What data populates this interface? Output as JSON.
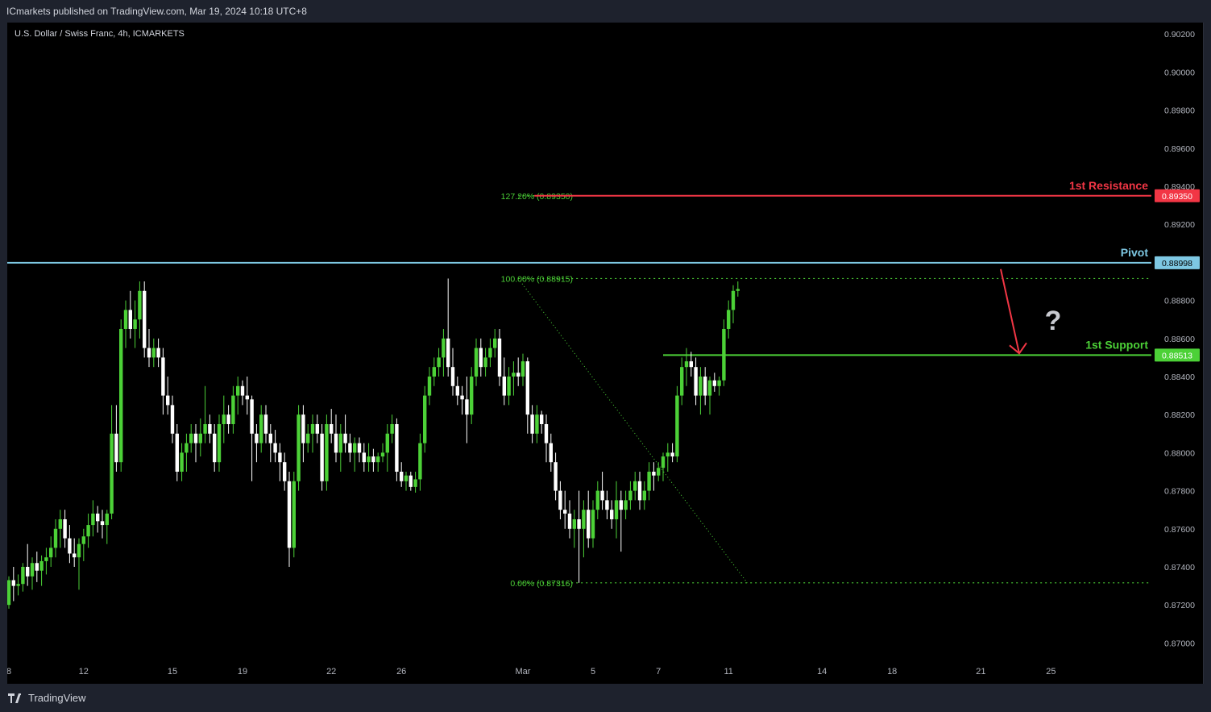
{
  "header": {
    "published_by": "ICmarkets published on TradingView.com, Mar 19, 2024 10:18 UTC+8"
  },
  "chart_title": "U.S. Dollar / Swiss Franc, 4h, ICMARKETS",
  "footer": {
    "brand": "TradingView"
  },
  "colors": {
    "background": "#000000",
    "bull": "#4cd137",
    "bear": "#ffffff",
    "resistance": "#f23645",
    "pivot": "#7ec8e3",
    "support": "#4cd137",
    "arrow": "#f23645",
    "fib": "#4cd137",
    "axis_text": "#b2b5be"
  },
  "annotations": {
    "question_mark": "?"
  },
  "chart_data": {
    "type": "candlestick",
    "symbol": "U.S. Dollar / Swiss Franc",
    "timeframe": "4h",
    "exchange": "ICMARKETS",
    "ylim": [
      0.869,
      0.9026
    ],
    "y_ticks": [
      "0.90200",
      "0.90000",
      "0.89800",
      "0.89600",
      "0.89400",
      "0.89200",
      "0.88800",
      "0.88600",
      "0.88400",
      "0.88200",
      "0.88000",
      "0.87800",
      "0.87600",
      "0.87400",
      "0.87200",
      "0.87000"
    ],
    "x_ticks": [
      {
        "label": "8",
        "bar": 0
      },
      {
        "label": "12",
        "bar": 16
      },
      {
        "label": "15",
        "bar": 35
      },
      {
        "label": "19",
        "bar": 50
      },
      {
        "label": "22",
        "bar": 69
      },
      {
        "label": "26",
        "bar": 84
      },
      {
        "label": "Mar",
        "bar": 110
      },
      {
        "label": "5",
        "bar": 125
      },
      {
        "label": "7",
        "bar": 139
      },
      {
        "label": "11",
        "bar": 154
      },
      {
        "label": "14",
        "bar": 174
      },
      {
        "label": "18",
        "bar": 189
      },
      {
        "label": "21",
        "bar": 208
      },
      {
        "label": "25",
        "bar": 223
      }
    ],
    "levels": [
      {
        "name": "1st Resistance",
        "value": 0.8935,
        "label": "0.89350",
        "role": "resistance"
      },
      {
        "name": "Pivot",
        "value": 0.88998,
        "label": "0.88998",
        "role": "pivot"
      },
      {
        "name": "1st Support",
        "value": 0.88513,
        "label": "0.88513",
        "role": "support"
      }
    ],
    "fibonacci": [
      {
        "label": "127.20% (0.89350)",
        "value": 0.8935
      },
      {
        "label": "100.00% (0.88915)",
        "value": 0.88915
      },
      {
        "label": "0.00% (0.87316)",
        "value": 0.87316
      }
    ],
    "candles": [
      [
        0.872,
        0.8735,
        0.8718,
        0.8733
      ],
      [
        0.8733,
        0.874,
        0.8722,
        0.873
      ],
      [
        0.873,
        0.8736,
        0.8725,
        0.8731
      ],
      [
        0.8731,
        0.8742,
        0.8727,
        0.874
      ],
      [
        0.874,
        0.8752,
        0.873,
        0.8735
      ],
      [
        0.8735,
        0.8745,
        0.8728,
        0.8742
      ],
      [
        0.8742,
        0.8748,
        0.8732,
        0.8738
      ],
      [
        0.8738,
        0.8746,
        0.873,
        0.8743
      ],
      [
        0.8743,
        0.875,
        0.8736,
        0.8745
      ],
      [
        0.8745,
        0.8756,
        0.874,
        0.875
      ],
      [
        0.875,
        0.8765,
        0.8745,
        0.876
      ],
      [
        0.876,
        0.877,
        0.875,
        0.8765
      ],
      [
        0.8765,
        0.877,
        0.875,
        0.8755
      ],
      [
        0.8755,
        0.8762,
        0.8742,
        0.8747
      ],
      [
        0.8747,
        0.8755,
        0.874,
        0.8745
      ],
      [
        0.8745,
        0.8755,
        0.8728,
        0.8752
      ],
      [
        0.8752,
        0.876,
        0.8743,
        0.8756
      ],
      [
        0.8756,
        0.8768,
        0.875,
        0.8762
      ],
      [
        0.8762,
        0.8775,
        0.8756,
        0.8768
      ],
      [
        0.8768,
        0.8772,
        0.8758,
        0.8764
      ],
      [
        0.8764,
        0.877,
        0.8755,
        0.8762
      ],
      [
        0.8762,
        0.877,
        0.8752,
        0.8768
      ],
      [
        0.8768,
        0.8825,
        0.8765,
        0.881
      ],
      [
        0.881,
        0.8825,
        0.879,
        0.8795
      ],
      [
        0.8795,
        0.887,
        0.879,
        0.8865
      ],
      [
        0.8865,
        0.888,
        0.8855,
        0.8875
      ],
      [
        0.8875,
        0.8885,
        0.886,
        0.8865
      ],
      [
        0.8865,
        0.888,
        0.8855,
        0.887
      ],
      [
        0.887,
        0.889,
        0.886,
        0.8885
      ],
      [
        0.8885,
        0.889,
        0.885,
        0.8855
      ],
      [
        0.8855,
        0.8865,
        0.8845,
        0.885
      ],
      [
        0.885,
        0.886,
        0.8845,
        0.8855
      ],
      [
        0.8855,
        0.886,
        0.8845,
        0.885
      ],
      [
        0.885,
        0.8855,
        0.882,
        0.883
      ],
      [
        0.883,
        0.884,
        0.882,
        0.8825
      ],
      [
        0.8825,
        0.883,
        0.8805,
        0.881
      ],
      [
        0.881,
        0.8815,
        0.8785,
        0.879
      ],
      [
        0.879,
        0.8805,
        0.8785,
        0.88
      ],
      [
        0.88,
        0.881,
        0.879,
        0.8805
      ],
      [
        0.8805,
        0.8815,
        0.88,
        0.881
      ],
      [
        0.881,
        0.8815,
        0.8795,
        0.8805
      ],
      [
        0.8805,
        0.8818,
        0.8798,
        0.881
      ],
      [
        0.881,
        0.8835,
        0.8805,
        0.8815
      ],
      [
        0.8815,
        0.882,
        0.8805,
        0.881
      ],
      [
        0.881,
        0.8815,
        0.879,
        0.8795
      ],
      [
        0.8795,
        0.882,
        0.879,
        0.8815
      ],
      [
        0.8815,
        0.883,
        0.8805,
        0.882
      ],
      [
        0.882,
        0.8825,
        0.881,
        0.8815
      ],
      [
        0.8815,
        0.8835,
        0.881,
        0.883
      ],
      [
        0.883,
        0.884,
        0.882,
        0.8835
      ],
      [
        0.8835,
        0.8838,
        0.8825,
        0.883
      ],
      [
        0.883,
        0.884,
        0.882,
        0.8828
      ],
      [
        0.8828,
        0.883,
        0.8785,
        0.881
      ],
      [
        0.881,
        0.8815,
        0.8795,
        0.8805
      ],
      [
        0.8805,
        0.8825,
        0.88,
        0.882
      ],
      [
        0.882,
        0.8825,
        0.8805,
        0.881
      ],
      [
        0.881,
        0.8815,
        0.8795,
        0.8805
      ],
      [
        0.8805,
        0.8812,
        0.8795,
        0.88
      ],
      [
        0.88,
        0.8805,
        0.8785,
        0.8795
      ],
      [
        0.8795,
        0.88,
        0.878,
        0.8785
      ],
      [
        0.8785,
        0.879,
        0.874,
        0.875
      ],
      [
        0.875,
        0.879,
        0.8745,
        0.8785
      ],
      [
        0.8785,
        0.8825,
        0.878,
        0.882
      ],
      [
        0.882,
        0.8825,
        0.8795,
        0.8805
      ],
      [
        0.8805,
        0.8815,
        0.88,
        0.881
      ],
      [
        0.881,
        0.882,
        0.88,
        0.8815
      ],
      [
        0.8815,
        0.882,
        0.8805,
        0.881
      ],
      [
        0.881,
        0.8815,
        0.878,
        0.8785
      ],
      [
        0.8785,
        0.882,
        0.878,
        0.8815
      ],
      [
        0.8815,
        0.8823,
        0.8805,
        0.881
      ],
      [
        0.881,
        0.882,
        0.8795,
        0.88
      ],
      [
        0.88,
        0.8815,
        0.879,
        0.881
      ],
      [
        0.881,
        0.882,
        0.88,
        0.8805
      ],
      [
        0.8805,
        0.881,
        0.8795,
        0.88
      ],
      [
        0.88,
        0.8808,
        0.879,
        0.8805
      ],
      [
        0.8805,
        0.8808,
        0.8795,
        0.88
      ],
      [
        0.88,
        0.8805,
        0.879,
        0.8795
      ],
      [
        0.8795,
        0.8805,
        0.879,
        0.8798
      ],
      [
        0.8798,
        0.8802,
        0.879,
        0.8795
      ],
      [
        0.8795,
        0.88,
        0.879,
        0.8798
      ],
      [
        0.8798,
        0.8805,
        0.8795,
        0.88
      ],
      [
        0.88,
        0.8815,
        0.879,
        0.881
      ],
      [
        0.881,
        0.882,
        0.8805,
        0.8815
      ],
      [
        0.8815,
        0.8818,
        0.8785,
        0.879
      ],
      [
        0.879,
        0.8795,
        0.8782,
        0.8785
      ],
      [
        0.8785,
        0.879,
        0.878,
        0.8788
      ],
      [
        0.8788,
        0.879,
        0.878,
        0.8782
      ],
      [
        0.8782,
        0.879,
        0.8779,
        0.8786
      ],
      [
        0.8786,
        0.881,
        0.878,
        0.8805
      ],
      [
        0.8805,
        0.8835,
        0.88,
        0.883
      ],
      [
        0.883,
        0.8845,
        0.8825,
        0.884
      ],
      [
        0.884,
        0.885,
        0.8835,
        0.8845
      ],
      [
        0.8845,
        0.8855,
        0.884,
        0.885
      ],
      [
        0.885,
        0.8865,
        0.884,
        0.886
      ],
      [
        0.886,
        0.88915,
        0.884,
        0.8845
      ],
      [
        0.8845,
        0.8855,
        0.883,
        0.8835
      ],
      [
        0.8835,
        0.884,
        0.8825,
        0.883
      ],
      [
        0.883,
        0.8835,
        0.882,
        0.8828
      ],
      [
        0.8828,
        0.884,
        0.8805,
        0.882
      ],
      [
        0.882,
        0.8845,
        0.8815,
        0.884
      ],
      [
        0.884,
        0.886,
        0.8835,
        0.8855
      ],
      [
        0.8855,
        0.886,
        0.884,
        0.8845
      ],
      [
        0.8845,
        0.8855,
        0.884,
        0.885
      ],
      [
        0.885,
        0.886,
        0.8845,
        0.8855
      ],
      [
        0.8855,
        0.8865,
        0.885,
        0.886
      ],
      [
        0.886,
        0.8865,
        0.8835,
        0.884
      ],
      [
        0.884,
        0.885,
        0.8825,
        0.883
      ],
      [
        0.883,
        0.8845,
        0.8825,
        0.884
      ],
      [
        0.884,
        0.8848,
        0.883,
        0.8842
      ],
      [
        0.8842,
        0.885,
        0.8835,
        0.884
      ],
      [
        0.884,
        0.8852,
        0.8835,
        0.8848
      ],
      [
        0.8848,
        0.885,
        0.881,
        0.882
      ],
      [
        0.882,
        0.8825,
        0.8805,
        0.881
      ],
      [
        0.881,
        0.8825,
        0.8805,
        0.882
      ],
      [
        0.882,
        0.8822,
        0.881,
        0.8815
      ],
      [
        0.8815,
        0.882,
        0.8795,
        0.8805
      ],
      [
        0.8805,
        0.881,
        0.879,
        0.8795
      ],
      [
        0.8795,
        0.88,
        0.8775,
        0.878
      ],
      [
        0.878,
        0.8785,
        0.8765,
        0.877
      ],
      [
        0.877,
        0.878,
        0.876,
        0.8768
      ],
      [
        0.8768,
        0.8775,
        0.8755,
        0.876
      ],
      [
        0.876,
        0.877,
        0.875,
        0.8765
      ],
      [
        0.8765,
        0.878,
        0.87316,
        0.876
      ],
      [
        0.876,
        0.8775,
        0.8745,
        0.877
      ],
      [
        0.877,
        0.878,
        0.875,
        0.8755
      ],
      [
        0.8755,
        0.8775,
        0.875,
        0.877
      ],
      [
        0.877,
        0.8785,
        0.8765,
        0.878
      ],
      [
        0.878,
        0.879,
        0.877,
        0.8775
      ],
      [
        0.8775,
        0.878,
        0.8765,
        0.877
      ],
      [
        0.877,
        0.8775,
        0.876,
        0.8765
      ],
      [
        0.8765,
        0.8785,
        0.8755,
        0.8775
      ],
      [
        0.8775,
        0.878,
        0.8748,
        0.877
      ],
      [
        0.877,
        0.878,
        0.8765,
        0.8775
      ],
      [
        0.8775,
        0.8785,
        0.877,
        0.878
      ],
      [
        0.878,
        0.879,
        0.8775,
        0.8785
      ],
      [
        0.8785,
        0.879,
        0.877,
        0.8775
      ],
      [
        0.8775,
        0.8785,
        0.877,
        0.878
      ],
      [
        0.878,
        0.8795,
        0.8775,
        0.879
      ],
      [
        0.879,
        0.8795,
        0.878,
        0.8788
      ],
      [
        0.8788,
        0.8795,
        0.8785,
        0.8792
      ],
      [
        0.8792,
        0.88,
        0.8785,
        0.8798
      ],
      [
        0.8798,
        0.8805,
        0.879,
        0.88
      ],
      [
        0.88,
        0.8805,
        0.8795,
        0.8798
      ],
      [
        0.8798,
        0.8835,
        0.8795,
        0.883
      ],
      [
        0.883,
        0.885,
        0.8825,
        0.8845
      ],
      [
        0.8845,
        0.8855,
        0.8835,
        0.8848
      ],
      [
        0.8848,
        0.8853,
        0.884,
        0.8845
      ],
      [
        0.8845,
        0.885,
        0.8825,
        0.883
      ],
      [
        0.883,
        0.8845,
        0.882,
        0.884
      ],
      [
        0.884,
        0.8845,
        0.8825,
        0.883
      ],
      [
        0.883,
        0.884,
        0.882,
        0.8838
      ],
      [
        0.8838,
        0.8842,
        0.8832,
        0.8835
      ],
      [
        0.8835,
        0.884,
        0.883,
        0.8838
      ],
      [
        0.8838,
        0.887,
        0.8835,
        0.8865
      ],
      [
        0.8865,
        0.888,
        0.886,
        0.8875
      ],
      [
        0.8875,
        0.8888,
        0.8868,
        0.8885
      ],
      [
        0.8885,
        0.889,
        0.8882,
        0.8886
      ]
    ]
  }
}
